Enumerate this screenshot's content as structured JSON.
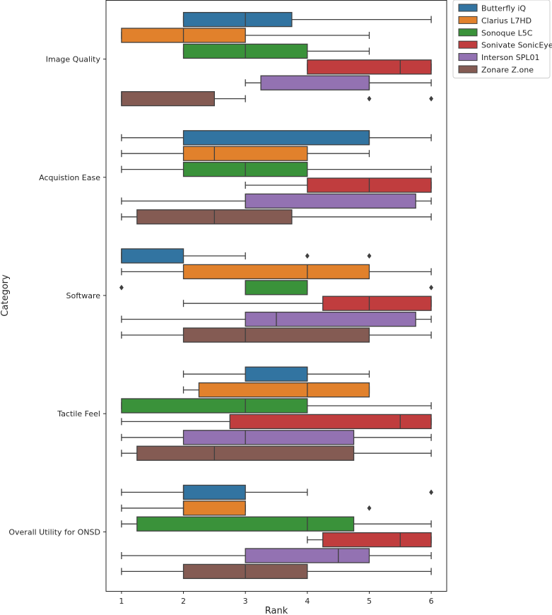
{
  "chart_data": {
    "type": "boxplot",
    "orientation": "horizontal",
    "title": "",
    "xlabel": "Rank",
    "ylabel": "Category",
    "xlim": [
      0.75,
      6.25
    ],
    "xticks": [
      1,
      2,
      3,
      4,
      5,
      6
    ],
    "legend_position": "outside-top-right",
    "series": [
      {
        "name": "Butterfly iQ",
        "color": "#3274a1"
      },
      {
        "name": "Clarius L7HD",
        "color": "#e1812c"
      },
      {
        "name": "Sonoque L5C",
        "color": "#3a923a"
      },
      {
        "name": "Sonivate SonicEye",
        "color": "#c03d3e"
      },
      {
        "name": "Interson SPL01",
        "color": "#9372b2"
      },
      {
        "name": "Zonare Z.one",
        "color": "#845b53"
      }
    ],
    "categories": [
      {
        "name": "Image Quality",
        "boxes": [
          {
            "whislo": 2,
            "q1": 2,
            "med": 3,
            "q3": 3.75,
            "whishi": 6,
            "fliers": []
          },
          {
            "whislo": 1,
            "q1": 1,
            "med": 2,
            "q3": 3,
            "whishi": 5,
            "fliers": []
          },
          {
            "whislo": 2,
            "q1": 2,
            "med": 3,
            "q3": 4,
            "whishi": 5,
            "fliers": []
          },
          {
            "whislo": 4,
            "q1": 4,
            "med": 5.5,
            "q3": 6,
            "whishi": 6,
            "fliers": []
          },
          {
            "whislo": 3,
            "q1": 3.25,
            "med": 5,
            "q3": 5,
            "whishi": 6,
            "fliers": []
          },
          {
            "whislo": 1,
            "q1": 1,
            "med": 1,
            "q3": 2.5,
            "whishi": 3,
            "fliers": [
              5,
              6
            ]
          }
        ]
      },
      {
        "name": "Acquistion Ease",
        "boxes": [
          {
            "whislo": 1,
            "q1": 2,
            "med": 5,
            "q3": 5,
            "whishi": 6,
            "fliers": []
          },
          {
            "whislo": 1,
            "q1": 2,
            "med": 2.5,
            "q3": 4,
            "whishi": 5,
            "fliers": []
          },
          {
            "whislo": 1,
            "q1": 2,
            "med": 3,
            "q3": 4,
            "whishi": 6,
            "fliers": []
          },
          {
            "whislo": 3,
            "q1": 4,
            "med": 5,
            "q3": 6,
            "whishi": 6,
            "fliers": []
          },
          {
            "whislo": 1,
            "q1": 3,
            "med": 3,
            "q3": 5.75,
            "whishi": 6,
            "fliers": []
          },
          {
            "whislo": 1,
            "q1": 1.25,
            "med": 2.5,
            "q3": 3.75,
            "whishi": 6,
            "fliers": []
          }
        ]
      },
      {
        "name": "Software",
        "boxes": [
          {
            "whislo": 1,
            "q1": 1,
            "med": 1,
            "q3": 2,
            "whishi": 3,
            "fliers": [
              4,
              5
            ]
          },
          {
            "whislo": 1,
            "q1": 2,
            "med": 4,
            "q3": 5,
            "whishi": 6,
            "fliers": []
          },
          {
            "whislo": 3,
            "q1": 3,
            "med": 3,
            "q3": 4,
            "whishi": 4,
            "fliers": [
              1,
              6
            ]
          },
          {
            "whislo": 2,
            "q1": 4.25,
            "med": 5,
            "q3": 6,
            "whishi": 6,
            "fliers": []
          },
          {
            "whislo": 1,
            "q1": 3,
            "med": 3.5,
            "q3": 5.75,
            "whishi": 6,
            "fliers": []
          },
          {
            "whislo": 1,
            "q1": 2,
            "med": 3,
            "q3": 5,
            "whishi": 6,
            "fliers": []
          }
        ]
      },
      {
        "name": "Tactile Feel",
        "boxes": [
          {
            "whislo": 2,
            "q1": 3,
            "med": 4,
            "q3": 4,
            "whishi": 5,
            "fliers": []
          },
          {
            "whislo": 2,
            "q1": 2.25,
            "med": 4,
            "q3": 5,
            "whishi": 5,
            "fliers": []
          },
          {
            "whislo": 1,
            "q1": 1,
            "med": 3,
            "q3": 4,
            "whishi": 6,
            "fliers": []
          },
          {
            "whislo": 1,
            "q1": 2.75,
            "med": 5.5,
            "q3": 6,
            "whishi": 6,
            "fliers": []
          },
          {
            "whislo": 1,
            "q1": 2,
            "med": 3,
            "q3": 4.75,
            "whishi": 6,
            "fliers": []
          },
          {
            "whislo": 1,
            "q1": 1.25,
            "med": 2.5,
            "q3": 4.75,
            "whishi": 6,
            "fliers": []
          }
        ]
      },
      {
        "name": "Overall Utility for ONSD",
        "boxes": [
          {
            "whislo": 1,
            "q1": 2,
            "med": 2,
            "q3": 3,
            "whishi": 4,
            "fliers": [
              6
            ]
          },
          {
            "whislo": 1,
            "q1": 2,
            "med": 2,
            "q3": 3,
            "whishi": 3,
            "fliers": [
              5
            ]
          },
          {
            "whislo": 1,
            "q1": 1.25,
            "med": 4,
            "q3": 4.75,
            "whishi": 6,
            "fliers": []
          },
          {
            "whislo": 4,
            "q1": 4.25,
            "med": 5.5,
            "q3": 6,
            "whishi": 6,
            "fliers": []
          },
          {
            "whislo": 1,
            "q1": 3,
            "med": 4.5,
            "q3": 5,
            "whishi": 6,
            "fliers": []
          },
          {
            "whislo": 1,
            "q1": 2,
            "med": 3,
            "q3": 4,
            "whishi": 6,
            "fliers": []
          }
        ]
      }
    ]
  }
}
